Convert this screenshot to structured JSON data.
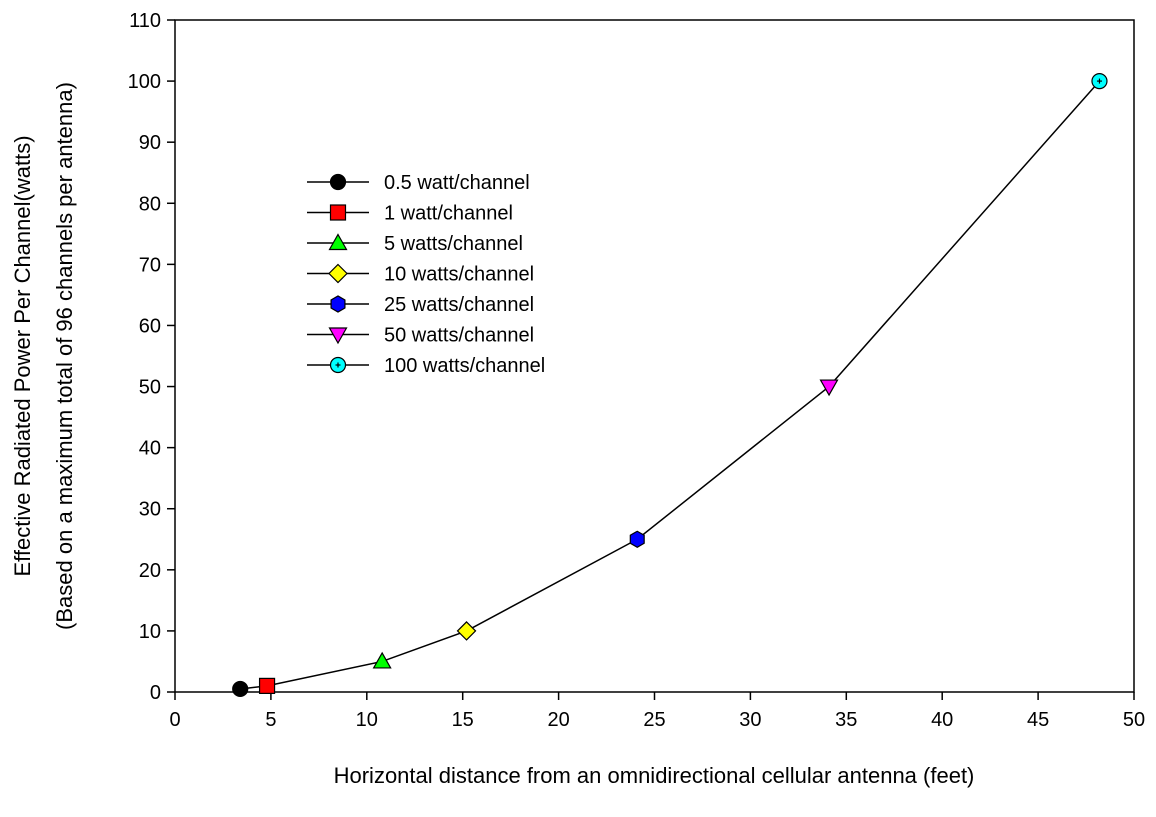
{
  "chart_data": {
    "type": "line",
    "title": "",
    "xlabel": "Horizontal distance from an omnidirectional cellular antenna (feet)",
    "ylabel": "Effective Radiated Power Per Channel(watts)",
    "ylabel2": "(Based on a maximum total of 96 channels per antenna)",
    "xlim": [
      0,
      50
    ],
    "ylim": [
      0,
      110
    ],
    "xticks": [
      0,
      5,
      10,
      15,
      20,
      25,
      30,
      35,
      40,
      45,
      50
    ],
    "yticks": [
      0,
      10,
      20,
      30,
      40,
      50,
      60,
      70,
      80,
      90,
      100,
      110
    ],
    "grid": false,
    "legend_position": "upper-left",
    "line_color": "#000000",
    "series": [
      {
        "name": "0.5 watt/channel",
        "x": 3.4,
        "y": 0.5,
        "marker": "circle",
        "color": "#000000"
      },
      {
        "name": "1 watt/channel",
        "x": 4.8,
        "y": 1,
        "marker": "square",
        "color": "#ff0000"
      },
      {
        "name": "5 watts/channel",
        "x": 10.8,
        "y": 5,
        "marker": "triangle-up",
        "color": "#00ff00"
      },
      {
        "name": "10 watts/channel",
        "x": 15.2,
        "y": 10,
        "marker": "diamond",
        "color": "#ffff00"
      },
      {
        "name": "25 watts/channel",
        "x": 24.1,
        "y": 25,
        "marker": "hexagon",
        "color": "#0000ff"
      },
      {
        "name": "50 watts/channel",
        "x": 34.1,
        "y": 50,
        "marker": "triangle-down",
        "color": "#ff00ff"
      },
      {
        "name": "100 watts/channel",
        "x": 48.2,
        "y": 100,
        "marker": "circle-dot",
        "color": "#00ffff"
      }
    ]
  }
}
